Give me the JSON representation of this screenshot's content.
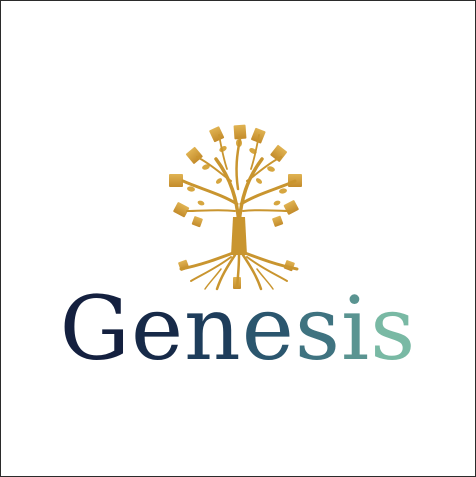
{
  "brand": {
    "name": "Genesis",
    "letters": [
      {
        "char": "G",
        "color": "#14203f"
      },
      {
        "char": "e",
        "color": "#172a48"
      },
      {
        "char": "n",
        "color": "#1e3d5b"
      },
      {
        "char": "e",
        "color": "#2b566e"
      },
      {
        "char": "s",
        "color": "#3f7380"
      },
      {
        "char": "i",
        "color": "#5a9491"
      },
      {
        "char": "s",
        "color": "#79b9a4"
      }
    ]
  },
  "colors": {
    "background": "#ffffff",
    "frame": "#2b2b2b",
    "tree_gold": "#c9952f",
    "tree_gold_light": "#e0b352"
  },
  "icon": {
    "name": "tree-of-knowledge-icon"
  }
}
